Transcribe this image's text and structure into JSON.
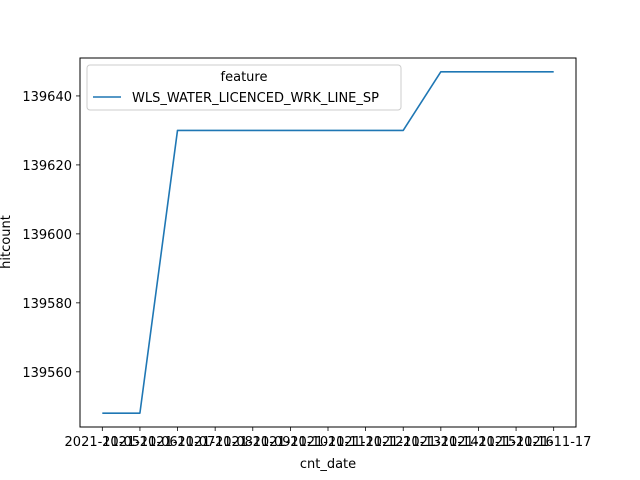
{
  "chart_data": {
    "type": "line",
    "title": "",
    "xlabel": "cnt_date",
    "ylabel": "hitcount",
    "x": [
      "2021-11-05",
      "2021-11-06",
      "2021-11-07",
      "2021-11-08",
      "2021-11-09",
      "2021-11-10",
      "2021-11-11",
      "2021-11-12",
      "2021-11-13",
      "2021-11-14",
      "2021-11-15",
      "2021-11-16",
      "2021-11-17"
    ],
    "series": [
      {
        "name": "WLS_WATER_LICENCED_WRK_LINE_SP",
        "color": "#1f77b4",
        "values": [
          139548,
          139548,
          139630,
          139630,
          139630,
          139630,
          139630,
          139630,
          139630,
          139647,
          139647,
          139647,
          139647
        ]
      }
    ],
    "ylim": [
      139544,
      139651
    ],
    "yticks": [
      139560,
      139580,
      139600,
      139620,
      139640
    ],
    "legend": {
      "title": "feature",
      "placement": "upper-left"
    },
    "grid": false
  }
}
